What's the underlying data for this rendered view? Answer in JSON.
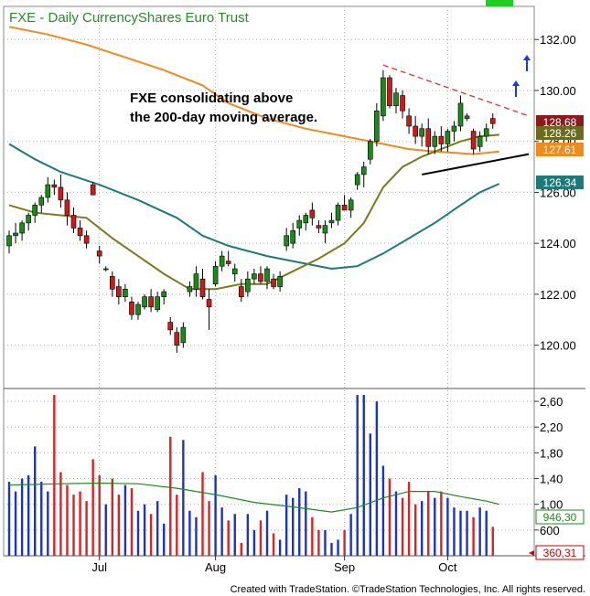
{
  "chart_data": [
    {
      "type": "candlestick",
      "title": "FXE - Daily  CurrencyShares Euro Trust",
      "annotation": "FXE consolidating above\nthe 200-day moving average.",
      "ylim": [
        118.3,
        133.3
      ],
      "y_ticks": [
        "132.00",
        "130.00",
        "128.00",
        "126.00",
        "124.00",
        "122.00",
        "120.00"
      ],
      "x_ticks": [
        "Jul",
        "Aug",
        "Sep",
        "Oct"
      ],
      "price_labels": [
        {
          "value": "128.68",
          "color": "#8b1a1a"
        },
        {
          "value": "128.26",
          "color": "#6b6b1e"
        },
        {
          "value": "127.61",
          "color": "#f08a1c"
        },
        {
          "value": "126.34",
          "color": "#1e7a7a"
        }
      ],
      "bars": [
        [
          123.9,
          124.5,
          123.6,
          124.3
        ],
        [
          124.3,
          124.8,
          124.0,
          124.4
        ],
        [
          124.4,
          124.9,
          124.1,
          124.8
        ],
        [
          124.8,
          125.2,
          124.5,
          125.1
        ],
        [
          125.1,
          125.6,
          124.8,
          125.5
        ],
        [
          125.5,
          125.9,
          125.2,
          125.8
        ],
        [
          125.8,
          126.6,
          125.6,
          126.3
        ],
        [
          126.3,
          126.5,
          125.9,
          126.2
        ],
        [
          126.2,
          126.7,
          125.4,
          125.7
        ],
        [
          125.7,
          126.0,
          124.7,
          125.1
        ],
        [
          125.1,
          125.4,
          124.4,
          124.6
        ],
        [
          124.6,
          124.9,
          124.1,
          124.3
        ],
        [
          124.3,
          124.5,
          123.8,
          124.0
        ],
        [
          126.3,
          126.4,
          125.9,
          125.9
        ],
        [
          123.7,
          123.9,
          123.2,
          123.5
        ],
        [
          123.0,
          123.1,
          122.9,
          123.0
        ],
        [
          122.7,
          122.9,
          121.9,
          122.2
        ],
        [
          122.3,
          122.6,
          121.6,
          121.9
        ],
        [
          121.9,
          122.4,
          121.7,
          122.2
        ],
        [
          121.7,
          121.9,
          121.0,
          121.2
        ],
        [
          121.2,
          121.7,
          121.0,
          121.6
        ],
        [
          121.5,
          122.0,
          121.4,
          121.9
        ],
        [
          121.9,
          122.2,
          121.3,
          121.5
        ],
        [
          121.4,
          122.1,
          121.3,
          121.9
        ],
        [
          121.9,
          122.2,
          121.6,
          122.1
        ],
        [
          120.9,
          121.1,
          120.4,
          120.6
        ],
        [
          120.5,
          120.7,
          119.7,
          120.0
        ],
        [
          120.1,
          120.9,
          119.9,
          120.7
        ],
        [
          122.1,
          122.5,
          121.9,
          122.3
        ],
        [
          122.2,
          123.1,
          121.9,
          122.8
        ],
        [
          122.6,
          123.0,
          121.8,
          121.9
        ],
        [
          121.8,
          122.2,
          120.6,
          121.5
        ],
        [
          122.4,
          123.3,
          122.3,
          123.1
        ],
        [
          123.1,
          123.7,
          122.9,
          123.5
        ],
        [
          123.3,
          123.7,
          123.1,
          123.2
        ],
        [
          122.8,
          123.2,
          122.5,
          123.0
        ],
        [
          122.3,
          122.6,
          121.7,
          121.9
        ],
        [
          122.1,
          122.9,
          121.9,
          122.6
        ],
        [
          122.6,
          123.0,
          122.4,
          122.8
        ],
        [
          122.8,
          123.1,
          122.4,
          122.5
        ],
        [
          122.5,
          123.1,
          122.2,
          123.0
        ],
        [
          122.6,
          122.8,
          122.2,
          122.3
        ],
        [
          122.3,
          122.9,
          122.1,
          122.7
        ],
        [
          123.9,
          124.6,
          123.7,
          124.3
        ],
        [
          124.0,
          124.8,
          123.8,
          124.5
        ],
        [
          124.6,
          125.1,
          124.3,
          124.9
        ],
        [
          124.8,
          125.2,
          124.5,
          125.1
        ],
        [
          125.3,
          125.6,
          124.7,
          125.0
        ],
        [
          124.7,
          124.9,
          124.4,
          124.6
        ],
        [
          124.4,
          124.9,
          124.0,
          124.7
        ],
        [
          124.8,
          125.2,
          124.6,
          124.9
        ],
        [
          124.9,
          125.6,
          124.7,
          125.5
        ],
        [
          125.5,
          125.9,
          125.3,
          125.3
        ],
        [
          125.3,
          125.8,
          125.0,
          125.7
        ],
        [
          126.3,
          126.8,
          126.1,
          126.7
        ],
        [
          126.7,
          127.2,
          126.2,
          127.0
        ],
        [
          127.3,
          128.1,
          127.1,
          128.0
        ],
        [
          128.0,
          129.5,
          127.8,
          129.2
        ],
        [
          129.0,
          130.8,
          128.8,
          130.5
        ],
        [
          130.5,
          130.6,
          129.3,
          129.4
        ],
        [
          129.4,
          130.1,
          129.1,
          129.9
        ],
        [
          129.8,
          130.0,
          128.9,
          129.2
        ],
        [
          129.0,
          129.3,
          128.3,
          128.6
        ],
        [
          128.6,
          129.0,
          127.9,
          128.2
        ],
        [
          128.2,
          128.7,
          127.8,
          128.5
        ],
        [
          128.5,
          128.9,
          127.5,
          127.8
        ],
        [
          127.8,
          128.4,
          127.5,
          128.2
        ],
        [
          128.2,
          128.6,
          127.6,
          127.9
        ],
        [
          127.9,
          128.5,
          127.6,
          128.4
        ],
        [
          128.4,
          128.8,
          128.0,
          128.6
        ],
        [
          128.6,
          129.8,
          128.4,
          129.5
        ],
        [
          128.9,
          129.1,
          128.8,
          129.0
        ],
        [
          128.4,
          128.5,
          127.5,
          127.7
        ],
        [
          127.8,
          128.4,
          127.6,
          128.2
        ],
        [
          128.2,
          128.7,
          128.0,
          128.5
        ],
        [
          128.9,
          129.1,
          128.5,
          128.7
        ]
      ],
      "volume": {
        "y_ticks": [
          "2,60",
          "2,20",
          "1,80",
          "1,40",
          "1,00",
          "600"
        ],
        "ylim": [
          200,
          2800
        ],
        "labels": [
          {
            "value": "946,30",
            "color": "#1e8a1e"
          },
          {
            "value": "360,31",
            "color": "#cc0000"
          }
        ]
      }
    }
  ],
  "footer": "Created with TradeStation. ©TradeStation Technologies, Inc. All rights reserved."
}
